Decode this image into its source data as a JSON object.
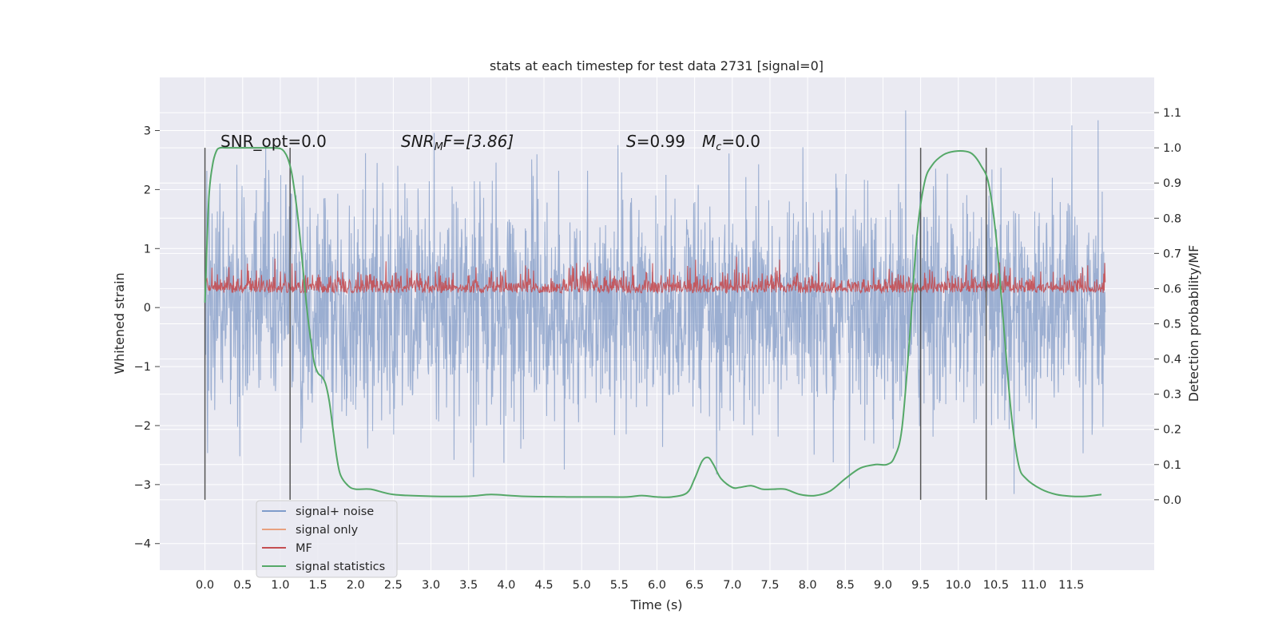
{
  "chart_data": {
    "type": "line",
    "title": "stats at each timestep for test data 2731 [signal=0]",
    "xlabel": "Time (s)",
    "ylabel_left": "Whitened strain",
    "ylabel_right": "Detection probability/MF",
    "xlim": [
      -0.6,
      12.6
    ],
    "ylim_left": [
      -4.45,
      3.9
    ],
    "ylim_right": [
      -0.2,
      1.2
    ],
    "x_ticks": [
      "0.0",
      "0.5",
      "1.0",
      "1.5",
      "2.0",
      "2.5",
      "3.0",
      "3.5",
      "4.0",
      "4.5",
      "5.0",
      "5.5",
      "6.0",
      "6.5",
      "7.0",
      "7.5",
      "8.0",
      "8.5",
      "9.0",
      "9.5",
      "10.0",
      "10.5",
      "11.0",
      "11.5"
    ],
    "y_ticks_left": [
      "3",
      "2",
      "1",
      "0",
      "−1",
      "−2",
      "−3",
      "−4"
    ],
    "y_ticks_right": [
      "1.1",
      "1.0",
      "0.9",
      "0.8",
      "0.7",
      "0.6",
      "0.5",
      "0.4",
      "0.3",
      "0.2",
      "0.1",
      "0.0"
    ],
    "grid": true,
    "legend_position": "lower-left",
    "annotations": {
      "snr_opt": "SNR_opt=0.0",
      "snr_mf_base": "SNR",
      "snr_mf_sub": "M",
      "snr_mf_rest": "F=[3.86]",
      "stat_s_label": "S",
      "stat_s_value": "=0.99",
      "mc_base": "M",
      "mc_sub": "c",
      "mc_value": "=0.0"
    },
    "vertical_markers_s": [
      0.0,
      1.13,
      9.5,
      10.37
    ],
    "series": [
      {
        "name": "signal+ noise",
        "axis": "left",
        "color": "#4c72b0",
        "description_range": [
          -3.2,
          3.5
        ],
        "x_range": [
          0.0,
          11.95
        ]
      },
      {
        "name": "signal only",
        "axis": "left",
        "color": "#dd8452",
        "values_constant": 0.0
      },
      {
        "name": "MF",
        "axis": "left",
        "color": "#c44e52",
        "value_range": [
          0.0,
          0.92
        ],
        "x_range": [
          0.0,
          11.95
        ]
      },
      {
        "name": "signal statistics",
        "axis": "right",
        "color": "#55a868",
        "x": [
          0.0,
          0.05,
          0.1,
          0.15,
          0.2,
          0.3,
          0.5,
          0.8,
          0.9,
          1.0,
          1.05,
          1.1,
          1.15,
          1.2,
          1.25,
          1.3,
          1.35,
          1.4,
          1.45,
          1.5,
          1.55,
          1.6,
          1.65,
          1.7,
          1.75,
          1.8,
          1.9,
          2.0,
          2.2,
          2.5,
          3.0,
          3.5,
          3.8,
          4.2,
          4.8,
          5.2,
          5.6,
          5.8,
          6.0,
          6.2,
          6.4,
          6.5,
          6.6,
          6.68,
          6.75,
          6.85,
          7.0,
          7.1,
          7.25,
          7.4,
          7.55,
          7.7,
          7.9,
          8.1,
          8.3,
          8.5,
          8.7,
          8.9,
          9.05,
          9.15,
          9.25,
          9.35,
          9.45,
          9.55,
          9.65,
          9.8,
          9.95,
          10.1,
          10.2,
          10.3,
          10.4,
          10.5,
          10.6,
          10.7,
          10.8,
          10.9,
          11.1,
          11.3,
          11.5,
          11.7,
          11.9
        ],
        "values": [
          0.56,
          0.85,
          0.95,
          0.99,
          1.0,
          1.0,
          1.0,
          1.0,
          1.0,
          0.998,
          0.99,
          0.97,
          0.93,
          0.86,
          0.77,
          0.66,
          0.55,
          0.46,
          0.39,
          0.36,
          0.35,
          0.33,
          0.28,
          0.2,
          0.12,
          0.07,
          0.04,
          0.03,
          0.03,
          0.015,
          0.01,
          0.01,
          0.015,
          0.01,
          0.008,
          0.008,
          0.008,
          0.012,
          0.008,
          0.008,
          0.02,
          0.06,
          0.11,
          0.12,
          0.1,
          0.06,
          0.035,
          0.035,
          0.04,
          0.03,
          0.03,
          0.03,
          0.015,
          0.012,
          0.025,
          0.06,
          0.09,
          0.1,
          0.1,
          0.12,
          0.2,
          0.45,
          0.75,
          0.9,
          0.95,
          0.98,
          0.99,
          0.99,
          0.98,
          0.95,
          0.9,
          0.75,
          0.5,
          0.25,
          0.1,
          0.06,
          0.03,
          0.015,
          0.01,
          0.01,
          0.015
        ]
      }
    ]
  },
  "legend": {
    "items": [
      {
        "label": "signal+ noise",
        "color": "#7f9ccb"
      },
      {
        "label": "signal only",
        "color": "#e8a180"
      },
      {
        "label": "MF",
        "color": "#c44e52"
      },
      {
        "label": "signal statistics",
        "color": "#55a868"
      }
    ]
  },
  "colors": {
    "figure_background": "#ffffff",
    "plot_background": "#eaeaf2",
    "grid": "#ffffff",
    "marker_lines": "#555555"
  }
}
